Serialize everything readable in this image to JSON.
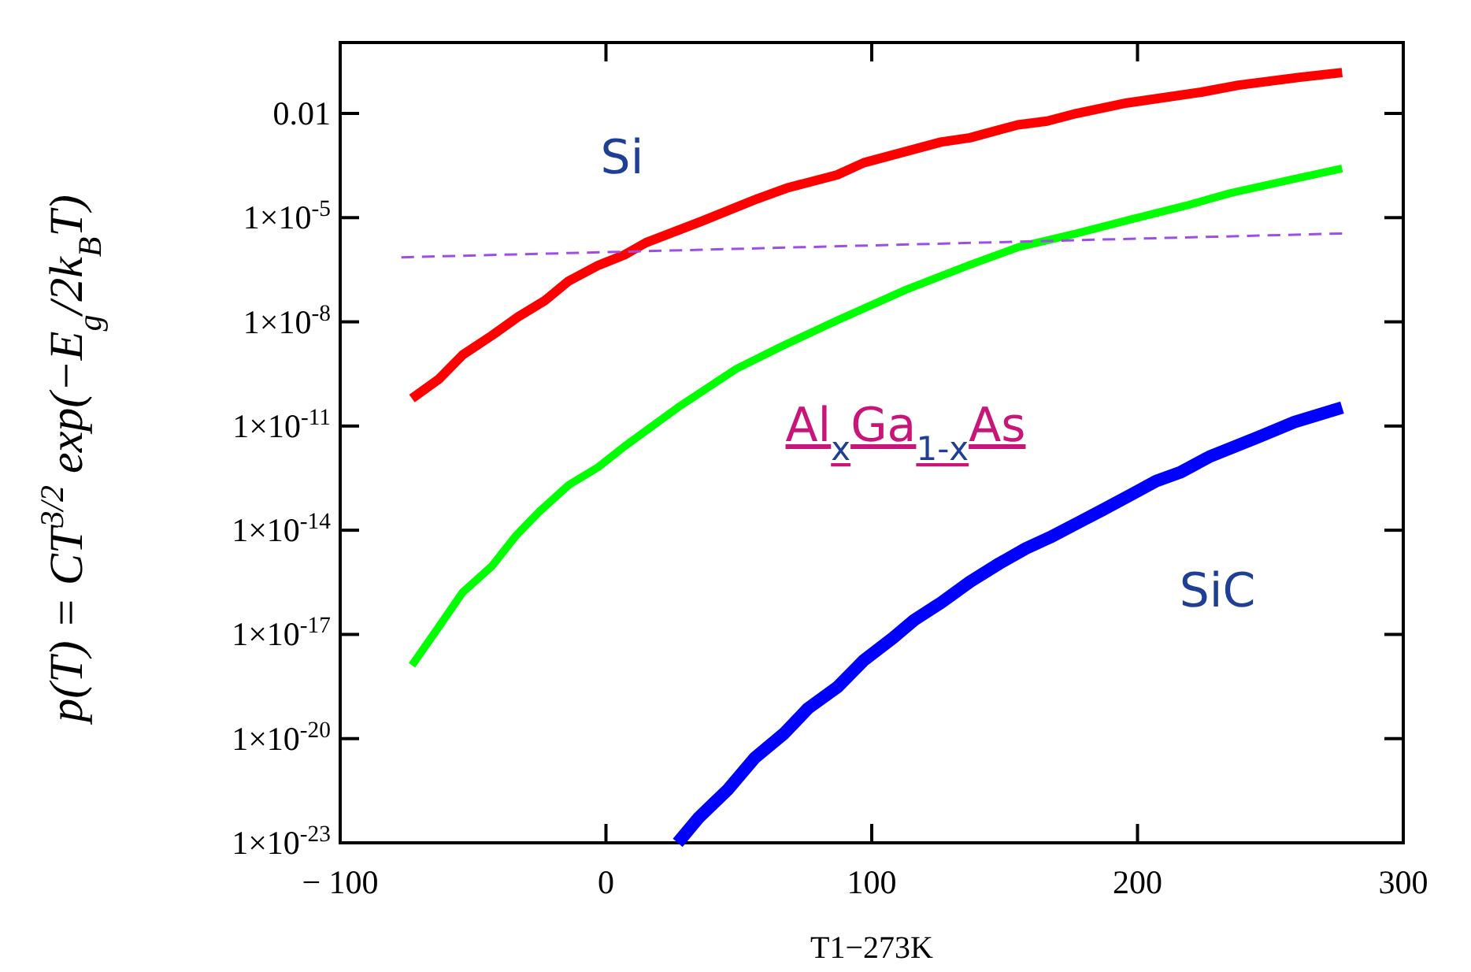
{
  "chart_data": {
    "type": "line",
    "log": true,
    "xlabel": "T1−273K",
    "ylabel": "p(T) = CT$^{3/2}$ exp(−E$_{g}$/2k$_{B}$T)",
    "xlim": [
      -100,
      300
    ],
    "xticks": [
      {
        "value": -100,
        "label": "− 100"
      },
      0,
      100,
      200,
      300
    ],
    "ylim": [
      1e-23,
      1.1
    ],
    "yticks": [
      0.01,
      {
        "value": 1e-05,
        "label": "1×10$^{-5}$"
      },
      {
        "value": 1e-08,
        "label": "1×10$^{-8}$"
      },
      {
        "value": 1e-11,
        "label": "1×10$^{-11}$"
      },
      {
        "value": 1e-14,
        "label": "1×10$^{-14}$"
      },
      {
        "value": 1e-17,
        "label": "1×10$^{-17}$"
      },
      {
        "value": 1e-20,
        "label": "1×10$^{-20}$"
      },
      {
        "value": 1e-23,
        "label": "1×10$^{-23}$"
      }
    ],
    "series": [
      {
        "color": "#ff0000",
        "x": [
          -73,
          -63,
          -54,
          -43,
          -33,
          -23,
          -14,
          -3,
          7,
          15,
          36,
          57,
          68,
          87,
          97,
          126,
          137,
          155,
          166,
          177,
          196,
          224,
          238,
          261,
          277
        ],
        "values": [
          6.2e-11,
          2.2e-10,
          1.1e-09,
          4e-09,
          1.4e-08,
          4.1e-08,
          1.5e-07,
          4.2e-07,
          8.5e-07,
          1.9e-06,
          7.9e-06,
          3.5e-05,
          7.1e-05,
          0.00017,
          0.00038,
          0.0015,
          0.002,
          0.0047,
          0.006,
          0.01,
          0.02,
          0.041,
          0.065,
          0.11,
          0.15
        ]
      },
      {
        "color": "#00ff00",
        "x": [
          -73,
          -63,
          -54,
          -43,
          -34,
          -25,
          -14,
          -3,
          7,
          27,
          49,
          65,
          87,
          113,
          137,
          155,
          177,
          198,
          219,
          235,
          259,
          277
        ],
        "values": [
          1.3e-18,
          1.6e-17,
          1.6e-16,
          9.1e-16,
          6.8e-15,
          3.5e-14,
          2e-13,
          6.5e-13,
          2.6e-12,
          3.4e-11,
          4.4e-10,
          1.8e-09,
          1.1e-08,
          8.5e-08,
          4.4e-07,
          1.4e-06,
          3.5e-06,
          9.1e-06,
          2.3e-05,
          5.1e-05,
          0.00013,
          0.00026
        ]
      },
      {
        "color": "#0000ff",
        "x": [
          27,
          35,
          46,
          56,
          67,
          76,
          87,
          97,
          108,
          116,
          126,
          137,
          148,
          158,
          167,
          178,
          187,
          198,
          207,
          216,
          227,
          246,
          259,
          277
        ],
        "values": [
          1e-23,
          5.4e-23,
          3.5e-22,
          2.8e-21,
          1.4e-20,
          7.4e-20,
          3e-19,
          1.8e-18,
          7.9e-18,
          2.6e-17,
          8.1e-17,
          3.3e-16,
          1.1e-15,
          3e-15,
          6.2e-15,
          1.7e-14,
          3.9e-14,
          1.1e-13,
          2.6e-13,
          4.6e-13,
          1.3e-12,
          5e-12,
          1.3e-11,
          3.4e-11
        ]
      },
      {
        "color": "#9d4ee8",
        "line_style": "dashed",
        "x": [
          -77,
          277
        ],
        "values": [
          7.2e-07,
          3.5e-06
        ]
      }
    ],
    "annotations": [
      "Si",
      "Al$_{x}$Ga$_{1-x}$As",
      "SiC"
    ]
  }
}
